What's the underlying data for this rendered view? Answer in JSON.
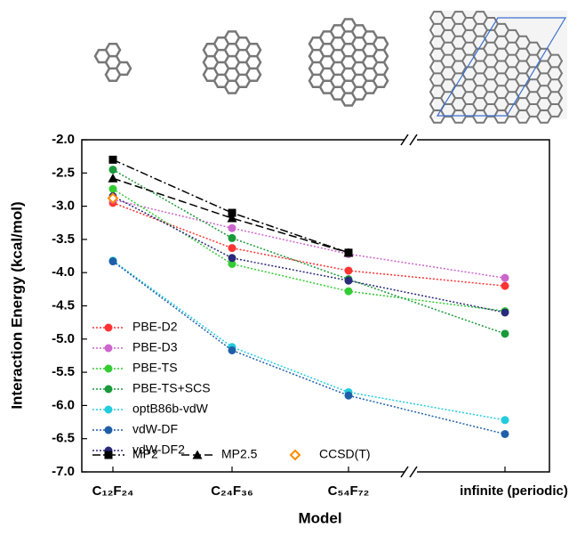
{
  "chart_data": {
    "type": "line",
    "categories": [
      "C₁₂F₂₄",
      "C₂₄F₃₆",
      "C₅₄F₇₂",
      "infinite (periodic)"
    ],
    "x_label": "Model",
    "y_label": "Interaction Energy (kcal/mol)",
    "ylim": [
      -7,
      -2
    ],
    "yticks": [
      {
        "value": -2,
        "label": "-2.0"
      },
      -2.5,
      {
        "value": -3,
        "label": "-3.0"
      },
      -3.5,
      {
        "value": -4,
        "label": "-4.0"
      },
      -4.5,
      {
        "value": -5,
        "label": "-5.0"
      },
      -5.5,
      {
        "value": -6,
        "label": "-6.0"
      },
      -6.5,
      {
        "value": -7,
        "label": "-7.0"
      }
    ],
    "series": [
      {
        "name": "PBE-D2",
        "color": "#ff3333",
        "line_style": "dotted",
        "marker": "circle",
        "values": [
          -2.95,
          -3.63,
          -3.97,
          -4.2
        ]
      },
      {
        "name": "PBE-D3",
        "color": "#cc66cc",
        "line_style": "dotted",
        "marker": "circle",
        "values": [
          -2.9,
          -3.33,
          -3.72,
          -4.08
        ]
      },
      {
        "name": "PBE-TS",
        "color": "#33cc33",
        "line_style": "dotted",
        "marker": "circle",
        "values": [
          -2.74,
          -3.87,
          -4.28,
          -4.58
        ]
      },
      {
        "name": "PBE-TS+SCS",
        "color": "#1a9a3a",
        "line_style": "dotted",
        "marker": "circle",
        "values": [
          -2.45,
          -3.48,
          -4.1,
          -4.92
        ]
      },
      {
        "name": "optB86b-vdW",
        "color": "#22ccdd",
        "line_style": "dotted",
        "marker": "circle",
        "values": [
          -3.82,
          -5.12,
          -5.8,
          -6.22
        ]
      },
      {
        "name": "vdW-DF",
        "color": "#1f5fa8",
        "line_style": "dotted",
        "marker": "circle",
        "values": [
          -3.83,
          -5.17,
          -5.85,
          -6.43
        ]
      },
      {
        "name": "vdW-DF2",
        "color": "#2a2a7a",
        "line_style": "dotted",
        "marker": "circle",
        "values": [
          -2.85,
          -3.78,
          -4.12,
          -4.6
        ]
      },
      {
        "name": "MP2",
        "color": "#000000",
        "line_style": "dashdot",
        "marker": "square",
        "values": [
          -2.3,
          -3.1,
          -3.7,
          null
        ]
      },
      {
        "name": "MP2.5",
        "color": "#000000",
        "line_style": "dashed",
        "marker": "triangle",
        "values": [
          -2.58,
          -3.18,
          -3.7,
          null
        ]
      },
      {
        "name": "CCSD(T)",
        "color": "#ff8c00",
        "line_style": "none",
        "marker": "diamond-open",
        "values": [
          -2.88,
          null,
          null,
          null
        ]
      }
    ]
  }
}
